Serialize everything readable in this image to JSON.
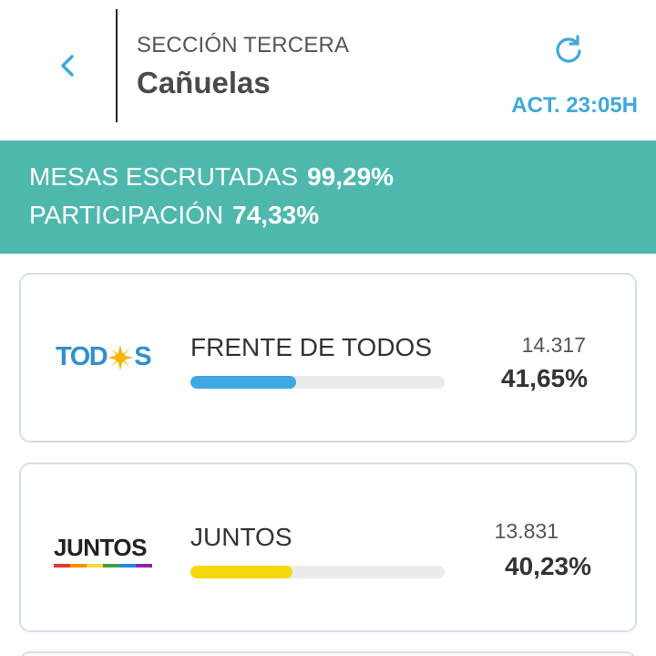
{
  "header": {
    "back_icon": "chevron-left-icon",
    "section_label": "SECCIÓN TERCERA",
    "title": "Cañuelas",
    "refresh_icon": "refresh-icon",
    "updated_label": "ACT. 23:05H"
  },
  "stats": {
    "mesas_label": "MESAS ESCRUTADAS",
    "mesas_value": "99,29%",
    "participacion_label": "PARTICIPACIÓN",
    "participacion_value": "74,33%"
  },
  "results": [
    {
      "logo_text_a": "TOD",
      "logo_text_b": "S",
      "name": "FRENTE DE TODOS",
      "votes": "14.317",
      "percent": "41,65%",
      "share": 0.4165,
      "bar_color": "#3fa9e6"
    },
    {
      "logo_text": "JUNTOS",
      "name": "JUNTOS",
      "votes": "13.831",
      "percent": "40,23%",
      "share": 0.4023,
      "bar_color": "#f5d90f"
    }
  ],
  "colors": {
    "accent_blue": "#3fa9d8",
    "band_teal": "#4fb8ae",
    "card_border": "#d3dff0"
  }
}
